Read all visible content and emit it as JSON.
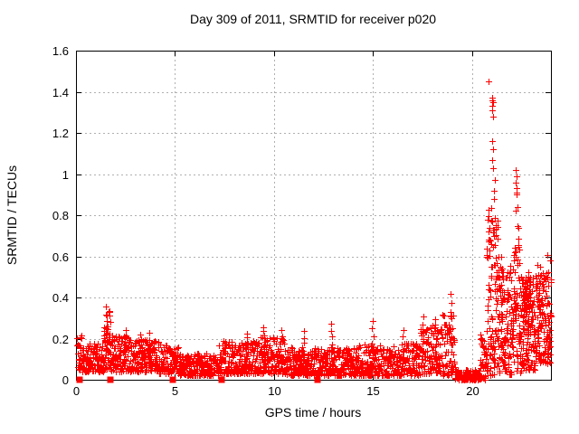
{
  "chart_data": {
    "type": "scatter",
    "title": "Day 309 of 2011, SRMTID for receiver p020",
    "xlabel": "GPS time / hours",
    "ylabel": "SRMTID / TECUs",
    "xlim": [
      0,
      24
    ],
    "ylim": [
      0,
      1.6
    ],
    "x_ticks": [
      0,
      5,
      10,
      15,
      20
    ],
    "x_tick_labels": [
      "0",
      "5",
      "10",
      "15",
      "20"
    ],
    "y_ticks": [
      0,
      0.2,
      0.4,
      0.6,
      0.8,
      1,
      1.2,
      1.4,
      1.6
    ],
    "y_tick_labels": [
      "0",
      "0.2",
      "0.4",
      "0.6",
      "0.8",
      "1",
      "1.2",
      "1.4",
      "1.6"
    ],
    "grid": true,
    "legend": "none",
    "marker": "plus",
    "marker_color": "#ff0000",
    "background": "#ffffff",
    "frame_color": "#000000",
    "grid_color": "#b0b0b0",
    "seed": 309,
    "series": [
      {
        "name": "SRMTID",
        "bands": [
          [
            0.05,
            0.35,
            0.04,
            0.22,
            30,
            1.3
          ],
          [
            0.35,
            1.4,
            0.04,
            0.18,
            110,
            1.4
          ],
          [
            1.4,
            1.75,
            0.05,
            0.34,
            50,
            1.2
          ],
          [
            1.75,
            2.6,
            0.04,
            0.22,
            90,
            1.5
          ],
          [
            2.6,
            4.2,
            0.04,
            0.2,
            160,
            1.5
          ],
          [
            4.2,
            5.2,
            0.03,
            0.17,
            100,
            1.5
          ],
          [
            5.2,
            7.2,
            0.02,
            0.13,
            190,
            1.4
          ],
          [
            7.2,
            9.0,
            0.03,
            0.19,
            180,
            1.5
          ],
          [
            9.0,
            10.6,
            0.03,
            0.21,
            160,
            1.5
          ],
          [
            10.6,
            12.4,
            0.02,
            0.16,
            180,
            1.5
          ],
          [
            12.4,
            14.2,
            0.02,
            0.16,
            180,
            1.5
          ],
          [
            14.2,
            16.0,
            0.02,
            0.17,
            170,
            1.5
          ],
          [
            16.0,
            17.4,
            0.02,
            0.18,
            130,
            1.5
          ],
          [
            17.4,
            18.5,
            0.03,
            0.27,
            110,
            1.4
          ],
          [
            18.5,
            19.15,
            0.02,
            0.32,
            60,
            1.3
          ],
          [
            19.15,
            20.4,
            0.0,
            0.05,
            90,
            1.5
          ],
          [
            20.4,
            20.75,
            0.0,
            0.22,
            40,
            1.3
          ],
          [
            20.75,
            21.35,
            0.02,
            0.85,
            115,
            1.1
          ],
          [
            21.35,
            22.05,
            0.02,
            0.58,
            110,
            1.3
          ],
          [
            22.05,
            22.45,
            0.03,
            0.75,
            70,
            1.2
          ],
          [
            22.45,
            23.2,
            0.04,
            0.5,
            120,
            1.3
          ],
          [
            22.55,
            22.95,
            0.3,
            0.5,
            40,
            1.0
          ],
          [
            23.2,
            24.0,
            0.08,
            0.52,
            130,
            1.2
          ]
        ],
        "spikes": [
          [
            1.52,
            0.12,
            0.35,
            8
          ],
          [
            2.5,
            0.1,
            0.24,
            6
          ],
          [
            3.3,
            0.1,
            0.22,
            5
          ],
          [
            3.72,
            0.1,
            0.23,
            5
          ],
          [
            8.6,
            0.1,
            0.23,
            6
          ],
          [
            9.5,
            0.1,
            0.26,
            7
          ],
          [
            10.4,
            0.09,
            0.24,
            6
          ],
          [
            11.5,
            0.08,
            0.24,
            6
          ],
          [
            12.9,
            0.08,
            0.27,
            7
          ],
          [
            15.0,
            0.08,
            0.28,
            7
          ],
          [
            16.5,
            0.08,
            0.24,
            6
          ],
          [
            17.5,
            0.1,
            0.3,
            7
          ],
          [
            18.2,
            0.1,
            0.3,
            7
          ],
          [
            18.95,
            0.05,
            0.42,
            10
          ],
          [
            21.5,
            0.1,
            0.6,
            8
          ],
          [
            22.8,
            0.15,
            0.52,
            7
          ],
          [
            23.4,
            0.12,
            0.55,
            7
          ],
          [
            23.85,
            0.15,
            0.6,
            7
          ]
        ],
        "outlier_points": [
          [
            20.83,
            1.45
          ],
          [
            21.02,
            1.37
          ],
          [
            21.04,
            1.36
          ],
          [
            21.06,
            1.35
          ],
          [
            21.03,
            1.33
          ],
          [
            21.05,
            1.31
          ],
          [
            21.06,
            1.28
          ],
          [
            21.04,
            1.16
          ],
          [
            21.06,
            1.12
          ],
          [
            21.02,
            1.07
          ],
          [
            21.08,
            1.03
          ],
          [
            21.15,
            0.97
          ],
          [
            21.12,
            0.92
          ],
          [
            21.1,
            0.88
          ],
          [
            22.22,
            1.02
          ],
          [
            22.24,
            0.99
          ],
          [
            22.23,
            0.96
          ],
          [
            22.25,
            0.93
          ],
          [
            22.24,
            0.91
          ],
          [
            22.26,
            0.9
          ],
          [
            22.3,
            0.84
          ],
          [
            22.2,
            0.82
          ],
          [
            23.3,
            0.56
          ],
          [
            23.95,
            0.58
          ]
        ],
        "zero_square_x": [
          0.2,
          1.75,
          4.9,
          7.35,
          12.2,
          19.65
        ]
      }
    ]
  }
}
